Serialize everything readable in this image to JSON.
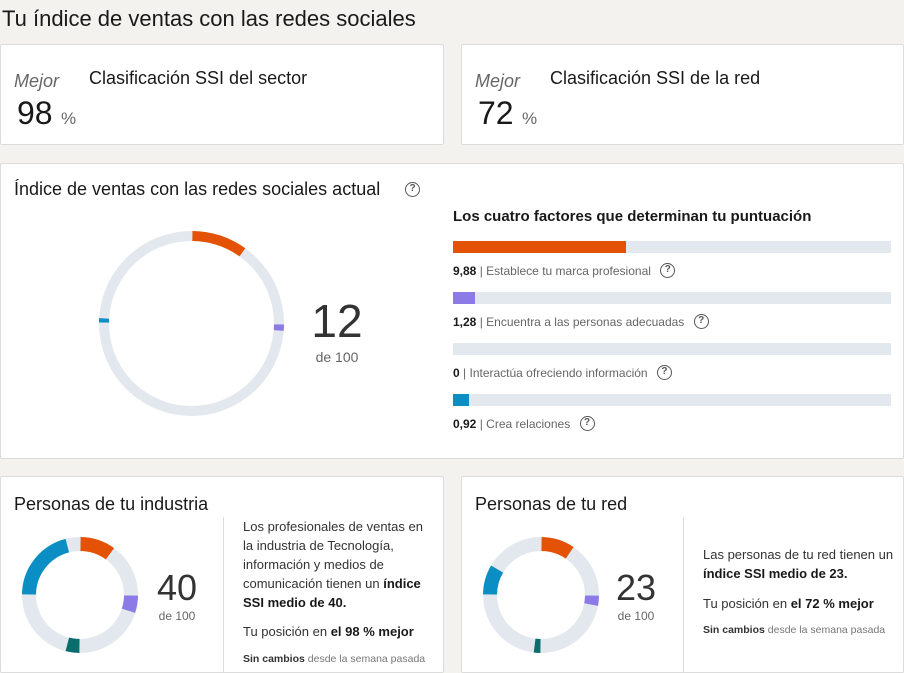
{
  "page_title": "Tu índice de ventas con las redes sociales",
  "sector_rank": {
    "prefix": "Mejor",
    "title": "Clasificación SSI del sector",
    "value": "98",
    "unit": "%"
  },
  "network_rank": {
    "prefix": "Mejor",
    "title": "Clasificación SSI de la red",
    "value": "72",
    "unit": "%"
  },
  "ssi": {
    "title": "Índice de ventas con las redes sociales actual",
    "score": "12",
    "out_of": "de 100",
    "factors_title": "Los cuatro factores que determinan tu puntuación",
    "factors": [
      {
        "value": "9,88",
        "label": "| Establece tu marca profesional",
        "fraction": 0.395,
        "color": "#e35205"
      },
      {
        "value": "1,28",
        "label": "| Encuentra a las personas adecuadas",
        "fraction": 0.051,
        "color": "#8c7ae6"
      },
      {
        "value": "0",
        "label": "| Interactúa ofreciendo información",
        "fraction": 0,
        "color": "#0a6d6d"
      },
      {
        "value": "0,92",
        "label": "| Crea relaciones",
        "fraction": 0.037,
        "color": "#0a8ec4"
      }
    ]
  },
  "industry": {
    "title": "Personas de tu industria",
    "score": "40",
    "out_of": "de 100",
    "desc_1": "Los profesionales de ventas en la industria de Tecnología, información y medios de comunicación tienen un",
    "desc_bold": "índice SSI medio de 40.",
    "position_prefix": "Tu posición en",
    "position_bold": "el 98 % mejor",
    "change_bold": "Sin cambios",
    "change_rest": "desde la semana pasada"
  },
  "network": {
    "title": "Personas de tu red",
    "score": "23",
    "out_of": "de 100",
    "desc_1": "Las personas de tu red tienen un",
    "desc_bold": "índice SSI medio de 23.",
    "position_prefix": "Tu posición en",
    "position_bold": "el 72 % mejor",
    "change_bold": "Sin cambios",
    "change_rest": "desde la semana pasada"
  },
  "colors": {
    "brand": "#e35205",
    "find": "#8c7ae6",
    "engage": "#0a6d6d",
    "relate": "#0a8ec4",
    "track": "#e2e8ed"
  },
  "donuts": {
    "main": [
      9.88,
      1.28,
      0,
      0.92
    ],
    "industry": [
      10,
      5,
      4,
      21
    ],
    "network": [
      9.5,
      3,
      2,
      8.5
    ]
  }
}
